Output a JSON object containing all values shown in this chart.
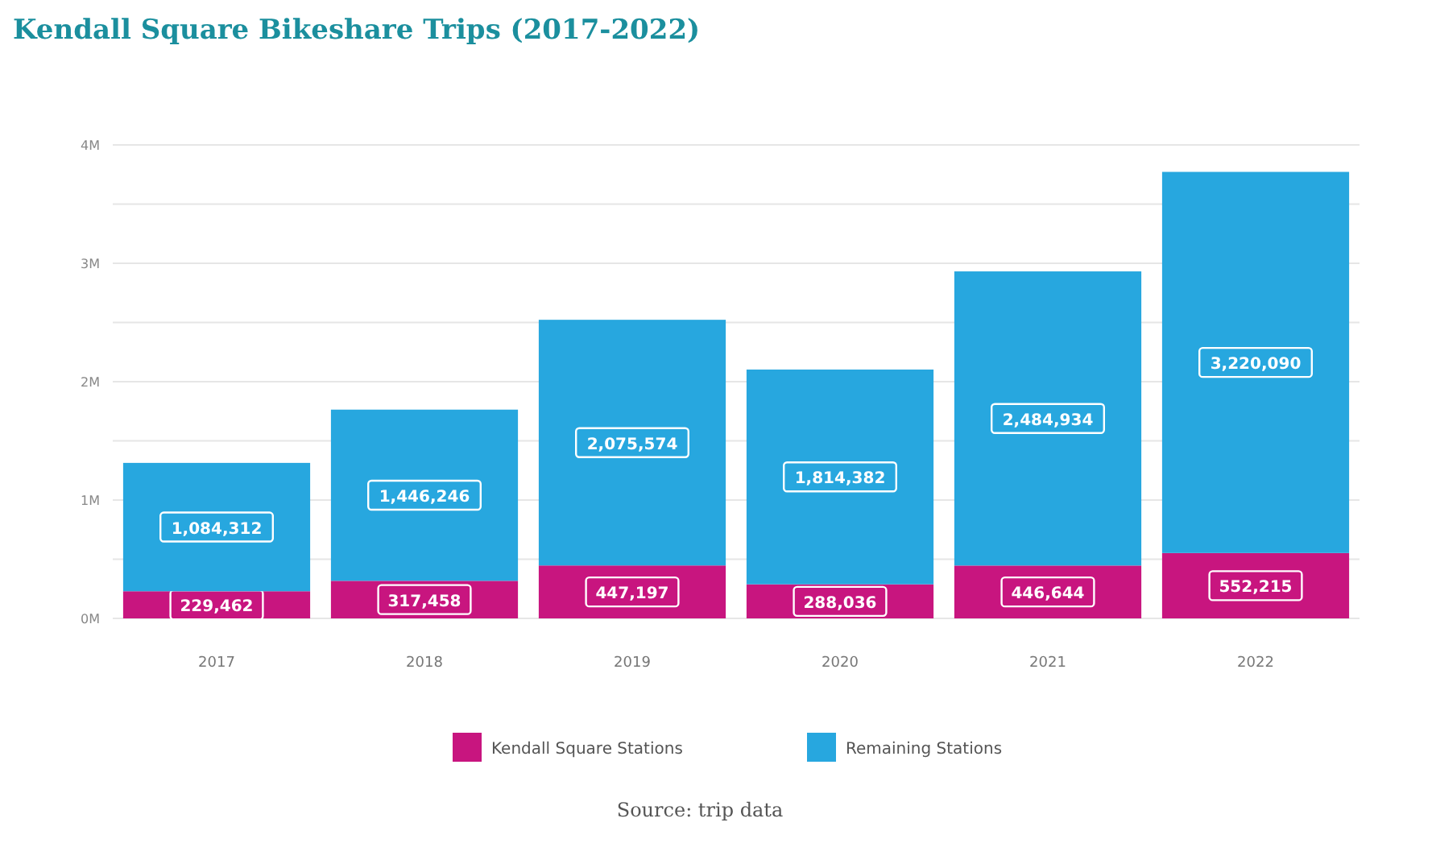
{
  "chart_data": {
    "type": "bar",
    "title": "Kendall Square Bikeshare Trips (2017-2022)",
    "categories": [
      "2017",
      "2018",
      "2019",
      "2020",
      "2021",
      "2022"
    ],
    "stacked": true,
    "series": [
      {
        "name": "Kendall Square Stations",
        "color": "#c8157f",
        "values": [
          229462,
          317458,
          447197,
          288036,
          446644,
          552215
        ],
        "value_labels": [
          "229,462",
          "317,458",
          "447,197",
          "288,036",
          "446,644",
          "552,215"
        ]
      },
      {
        "name": "Remaining Stations",
        "color": "#27a7df",
        "values": [
          1084312,
          1446246,
          2075574,
          1814382,
          2484934,
          3220090
        ],
        "value_labels": [
          "1,084,312",
          "1,446,246",
          "2,075,574",
          "1,814,382",
          "2,484,934",
          "3,220,090"
        ]
      }
    ],
    "ylim": [
      0,
      4000000
    ],
    "yticks": [
      {
        "value": 0,
        "label": "0M"
      },
      {
        "value": 500000,
        "label": null
      },
      {
        "value": 1000000,
        "label": "1M"
      },
      {
        "value": 1500000,
        "label": null
      },
      {
        "value": 2000000,
        "label": "2M"
      },
      {
        "value": 2500000,
        "label": null
      },
      {
        "value": 3000000,
        "label": "3M"
      },
      {
        "value": 3500000,
        "label": null
      },
      {
        "value": 4000000,
        "label": "4M"
      }
    ],
    "grid": "y",
    "legend": "bottom",
    "annotations": [
      "Source: trip data"
    ]
  }
}
